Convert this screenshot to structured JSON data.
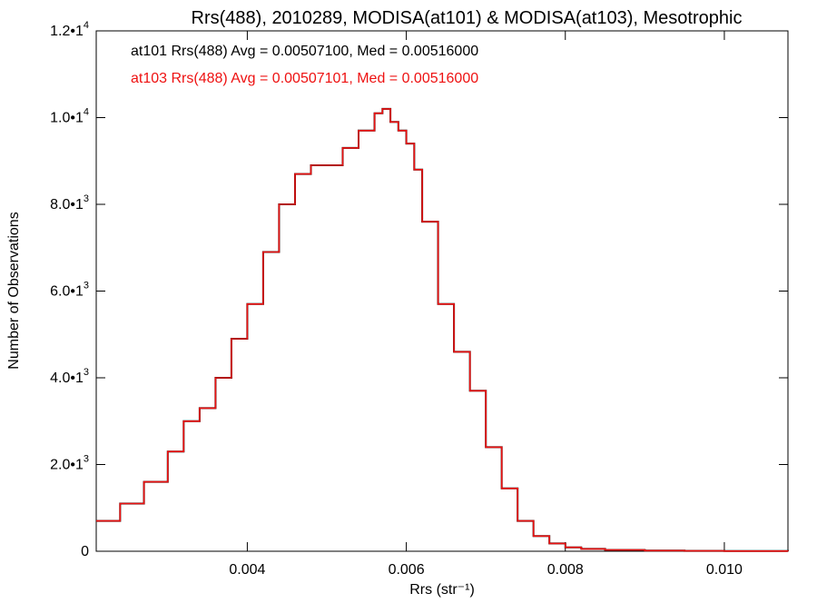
{
  "chart_data": {
    "type": "line",
    "title": "Rrs(488), 2010289, MODISA(at101) & MODISA(at103), Mesotrophic",
    "xlabel": "Rrs (str⁻¹)",
    "ylabel": "Number of Observations",
    "xlim": [
      0.0021,
      0.0108
    ],
    "ylim": [
      0,
      12000
    ],
    "x_ticks": [
      {
        "value": 0.004,
        "label": "0.004"
      },
      {
        "value": 0.006,
        "label": "0.006"
      },
      {
        "value": 0.008,
        "label": "0.008"
      },
      {
        "value": 0.01,
        "label": "0.010"
      }
    ],
    "y_ticks": [
      {
        "value": 0,
        "mantissa": "0",
        "exp": ""
      },
      {
        "value": 2000,
        "mantissa": "2.0•1",
        "exp": "3"
      },
      {
        "value": 4000,
        "mantissa": "4.0•1",
        "exp": "3"
      },
      {
        "value": 6000,
        "mantissa": "6.0•1",
        "exp": "3"
      },
      {
        "value": 8000,
        "mantissa": "8.0•1",
        "exp": "3"
      },
      {
        "value": 10000,
        "mantissa": "1.0•1",
        "exp": "4"
      },
      {
        "value": 12000,
        "mantissa": "1.2•1",
        "exp": "4"
      }
    ],
    "annotations": [
      {
        "text": "at101 Rrs(488) Avg = 0.00507100, Med = 0.00516000",
        "color": "#000000"
      },
      {
        "text": "at103 Rrs(488) Avg = 0.00507101, Med = 0.00516000",
        "color": "#ee1111"
      }
    ],
    "series": [
      {
        "color": "#000000",
        "x": [
          0.0021,
          0.0024,
          0.0027,
          0.003,
          0.0032,
          0.0034,
          0.0036,
          0.0038,
          0.004,
          0.0042,
          0.0044,
          0.0046,
          0.0048,
          0.005,
          0.0052,
          0.0054,
          0.0056,
          0.0057,
          0.0058,
          0.0059,
          0.006,
          0.0061,
          0.0062,
          0.0064,
          0.0066,
          0.0068,
          0.007,
          0.0072,
          0.0074,
          0.0076,
          0.0078,
          0.008,
          0.0082,
          0.0085,
          0.009,
          0.0095,
          0.01,
          0.0108
        ],
        "y": [
          700,
          1100,
          1600,
          2300,
          3000,
          3300,
          4000,
          4900,
          5700,
          6900,
          8000,
          8700,
          8900,
          8900,
          9300,
          9700,
          10100,
          10200,
          9900,
          9700,
          9400,
          8800,
          7600,
          5700,
          4600,
          3700,
          2400,
          1450,
          700,
          350,
          180,
          90,
          55,
          30,
          15,
          8,
          4,
          2
        ]
      },
      {
        "color": "#ee1111",
        "x": [
          0.0021,
          0.0024,
          0.0027,
          0.003,
          0.0032,
          0.0034,
          0.0036,
          0.0038,
          0.004,
          0.0042,
          0.0044,
          0.0046,
          0.0048,
          0.005,
          0.0052,
          0.0054,
          0.0056,
          0.0057,
          0.0058,
          0.0059,
          0.006,
          0.0061,
          0.0062,
          0.0064,
          0.0066,
          0.0068,
          0.007,
          0.0072,
          0.0074,
          0.0076,
          0.0078,
          0.008,
          0.0082,
          0.0085,
          0.009,
          0.0095,
          0.01,
          0.0108
        ],
        "y": [
          700,
          1100,
          1600,
          2300,
          3000,
          3300,
          4000,
          4900,
          5700,
          6900,
          8000,
          8700,
          8900,
          8900,
          9300,
          9700,
          10100,
          10200,
          9900,
          9700,
          9400,
          8800,
          7600,
          5700,
          4600,
          3700,
          2400,
          1450,
          700,
          350,
          180,
          90,
          55,
          30,
          15,
          8,
          4,
          2
        ]
      }
    ]
  }
}
